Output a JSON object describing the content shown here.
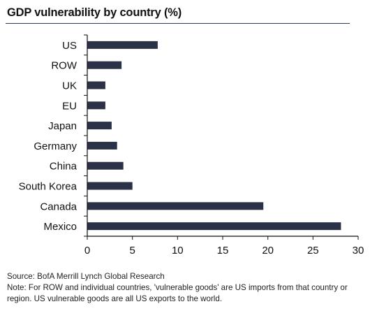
{
  "title": "GDP vulnerability by country (%)",
  "footer": {
    "source": "Source:  BofA Merrill Lynch Global Research",
    "note_line1": "Note: For ROW and individual countries, 'vulnerable goods' are US imports from that country or",
    "note_line2": "region. US vulnerable goods are all US exports to the world."
  },
  "colors": {
    "bar": "#2b3247",
    "axis": "#111111",
    "title_rule": "#2e3a55"
  },
  "chart_data": {
    "type": "bar",
    "orientation": "horizontal",
    "title": "GDP vulnerability by country (%)",
    "xlabel": "",
    "ylabel": "",
    "categories": [
      "US",
      "ROW",
      "UK",
      "EU",
      "Japan",
      "Germany",
      "China",
      "South Korea",
      "Canada",
      "Mexico"
    ],
    "values": [
      7.8,
      3.8,
      2.0,
      2.0,
      2.7,
      3.3,
      4.0,
      5.0,
      19.5,
      28.1
    ],
    "xlim": [
      0,
      30
    ],
    "xticks": [
      0,
      5,
      10,
      15,
      20,
      25,
      30
    ],
    "grid": false,
    "legend": "none"
  }
}
